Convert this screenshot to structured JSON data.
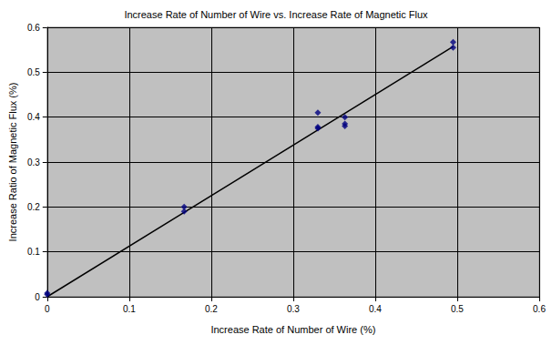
{
  "chart_data": {
    "type": "scatter",
    "title": "Increase Rate of Number of Wire vs. Increase Rate of Magnetic Flux",
    "x_label": "Increase Rate of Number of Wire (%)",
    "y_label": "Increase Ratio of Magnetic Flux (%)",
    "xlim": [
      0,
      0.6
    ],
    "xticks": [
      0,
      0.1,
      0.2,
      0.3,
      0.4,
      0.5,
      0.6
    ],
    "ylim": [
      0,
      0.6
    ],
    "yticks": [
      0,
      0.1,
      0.2,
      0.3,
      0.4,
      0.5,
      0.6
    ],
    "grid": true,
    "series": [
      {
        "type": "scatter",
        "marker": "diamond",
        "color": "#000080",
        "x": [
          0,
          0,
          0.167,
          0.167,
          0.33,
          0.33,
          0.33,
          0.363,
          0.363,
          0.363,
          0.495,
          0.495
        ],
        "values": [
          0.005,
          0.008,
          0.19,
          0.2,
          0.375,
          0.41,
          0.378,
          0.38,
          0.4,
          0.385,
          0.555,
          0.567
        ]
      },
      {
        "type": "line",
        "line_style": "solid",
        "color": "#000000",
        "x": [
          0,
          0.495
        ],
        "values": [
          0,
          0.557
        ]
      }
    ]
  }
}
